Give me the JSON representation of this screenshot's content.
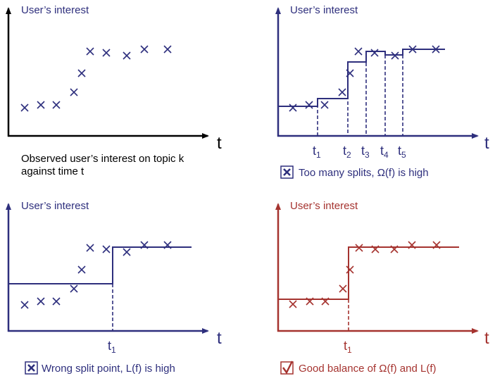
{
  "colors": {
    "navy": "#2e2f7d",
    "red": "#a5332f",
    "black": "#000000"
  },
  "panels": [
    {
      "y_label": "User’s interest",
      "x_label": "t",
      "caption_line1": "Observed user’s interest on topic k",
      "caption_line2": "against time t"
    },
    {
      "y_label": "User’s interest",
      "x_label": "t",
      "ticks": [
        {
          "t": "t",
          "s": "1"
        },
        {
          "t": "t",
          "s": "2"
        },
        {
          "t": "t",
          "s": "3"
        },
        {
          "t": "t",
          "s": "4"
        },
        {
          "t": "t",
          "s": "5"
        }
      ],
      "caption": "Too many splits, Ω(f)  is high",
      "icon": "x-box-icon"
    },
    {
      "y_label": "User’s interest",
      "x_label": "t",
      "ticks": [
        {
          "t": "t",
          "s": "1"
        }
      ],
      "caption": "Wrong split point, L(f) is high",
      "icon": "x-box-icon"
    },
    {
      "y_label": "User’s interest",
      "x_label": "t",
      "ticks": [
        {
          "t": "t",
          "s": "1"
        }
      ],
      "caption": "Good balance of Ω(f) and L(f)",
      "icon": "check-box-icon"
    }
  ]
}
